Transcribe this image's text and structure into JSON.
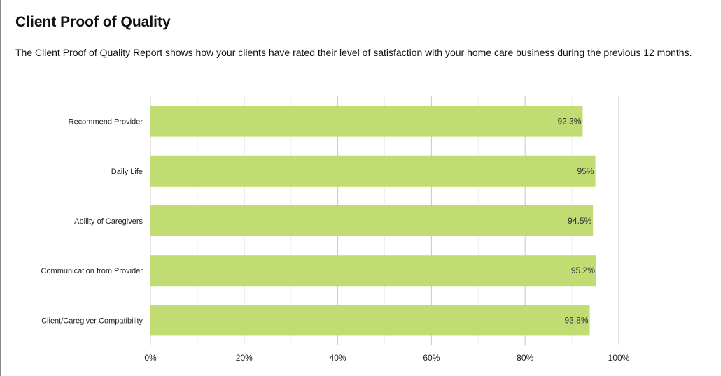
{
  "header": {
    "title": "Client Proof of Quality",
    "description": "The Client Proof of Quality Report shows how your clients have rated their level of satisfaction with your home care business during the previous 12 months."
  },
  "chart_data": {
    "type": "bar",
    "orientation": "horizontal",
    "categories": [
      "Recommend Provider",
      "Daily Life",
      "Ability of Caregivers",
      "Communication from Provider",
      "Client/Caregiver Compatibility"
    ],
    "values": [
      92.3,
      95,
      94.5,
      95.2,
      93.8
    ],
    "data_labels": [
      "92.3%",
      "95%",
      "94.5%",
      "95.2%",
      "93.8%"
    ],
    "xlim": [
      0,
      100
    ],
    "x_ticks": [
      0,
      20,
      40,
      60,
      80,
      100
    ],
    "x_tick_labels": [
      "0%",
      "20%",
      "40%",
      "60%",
      "80%",
      "100%"
    ],
    "grid": true,
    "bar_color": "#c2dc74",
    "title": "",
    "xlabel": "",
    "ylabel": ""
  }
}
